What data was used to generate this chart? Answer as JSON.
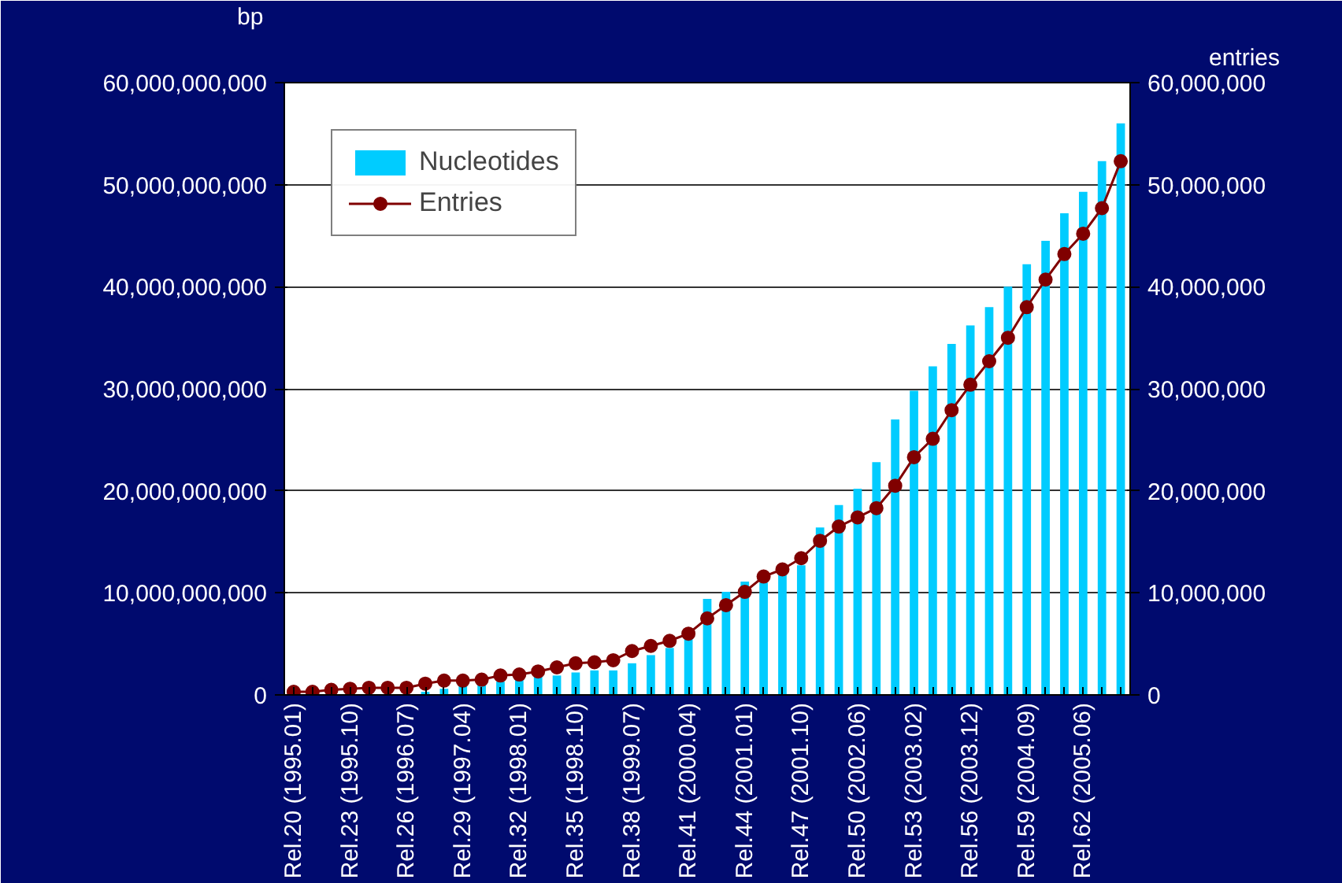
{
  "chart_data": {
    "type": "bar",
    "ylabel": "bp",
    "y2label": "entries",
    "categories": [
      "Rel.20 (1995.01)",
      null,
      null,
      "Rel.23 (1995.10)",
      null,
      null,
      "Rel.26 (1996.07)",
      null,
      null,
      "Rel.29 (1997.04)",
      null,
      null,
      "Rel.32 (1998.01)",
      null,
      null,
      "Rel.35 (1998.10)",
      null,
      null,
      "Rel.38 (1999.07)",
      null,
      null,
      "Rel.41 (2000.04)",
      null,
      null,
      "Rel.44 (2001.01)",
      null,
      null,
      "Rel.47 (2001.10)",
      null,
      null,
      "Rel.50 (2002.06)",
      null,
      null,
      "Rel.53 (2003.02)",
      null,
      null,
      "Rel.56 (2003.12)",
      null,
      null,
      "Rel.59 (2004.09)",
      null,
      null,
      "Rel.62 (2005.06)",
      null,
      null
    ],
    "series": [
      {
        "name": "Nucleotides",
        "color": "#00ccff",
        "values": [
          null,
          null,
          null,
          null,
          null,
          null,
          null,
          300000000,
          600000000,
          900000000,
          1100000000,
          1300000000,
          1500000000,
          1800000000,
          1900000000,
          2200000000,
          2400000000,
          2400000000,
          3100000000,
          3900000000,
          4600000000,
          5600000000,
          9400000000,
          10100000000,
          11100000000,
          11000000000,
          12000000000,
          12700000000,
          16400000000,
          18600000000,
          20200000000,
          22800000000,
          27000000000,
          29800000000,
          32200000000,
          34400000000,
          36200000000,
          38000000000,
          40000000000,
          42200000000,
          44500000000,
          47200000000,
          49300000000,
          52300000000,
          56000000000
        ]
      },
      {
        "name": "Entries",
        "type": "line",
        "axis": "y2",
        "color": "#800000",
        "marker": "circle",
        "values": [
          300000,
          300000,
          500000,
          600000,
          700000,
          700000,
          700000,
          1100000,
          1400000,
          1400000,
          1500000,
          1900000,
          2000000,
          2300000,
          2700000,
          3100000,
          3200000,
          3400000,
          4300000,
          4800000,
          5300000,
          6000000,
          7500000,
          8800000,
          10100000,
          11600000,
          12300000,
          13400000,
          15100000,
          16500000,
          17400000,
          18300000,
          20500000,
          23300000,
          25100000,
          27900000,
          30400000,
          32700000,
          35000000,
          38000000,
          40700000,
          43200000,
          45200000,
          47700000,
          52300000
        ]
      }
    ],
    "ylim": [
      0,
      60000000000
    ],
    "yticks": [
      {
        "value": 0,
        "label": "0"
      },
      {
        "value": 10000000000,
        "label": "10,000,000,000"
      },
      {
        "value": 20000000000,
        "label": "20,000,000,000"
      },
      {
        "value": 30000000000,
        "label": "30,000,000,000"
      },
      {
        "value": 40000000000,
        "label": "40,000,000,000"
      },
      {
        "value": 50000000000,
        "label": "50,000,000,000"
      },
      {
        "value": 60000000000,
        "label": "60,000,000,000"
      }
    ],
    "y2lim": [
      0,
      60000000
    ],
    "y2ticks": [
      {
        "value": 0,
        "label": "0"
      },
      {
        "value": 10000000,
        "label": "10,000,000"
      },
      {
        "value": 20000000,
        "label": "20,000,000"
      },
      {
        "value": 30000000,
        "label": "30,000,000"
      },
      {
        "value": 40000000,
        "label": "40,000,000"
      },
      {
        "value": 50000000,
        "label": "50,000,000"
      },
      {
        "value": 60000000,
        "label": "60,000,000"
      }
    ],
    "grid": "y",
    "legend": "top left"
  }
}
